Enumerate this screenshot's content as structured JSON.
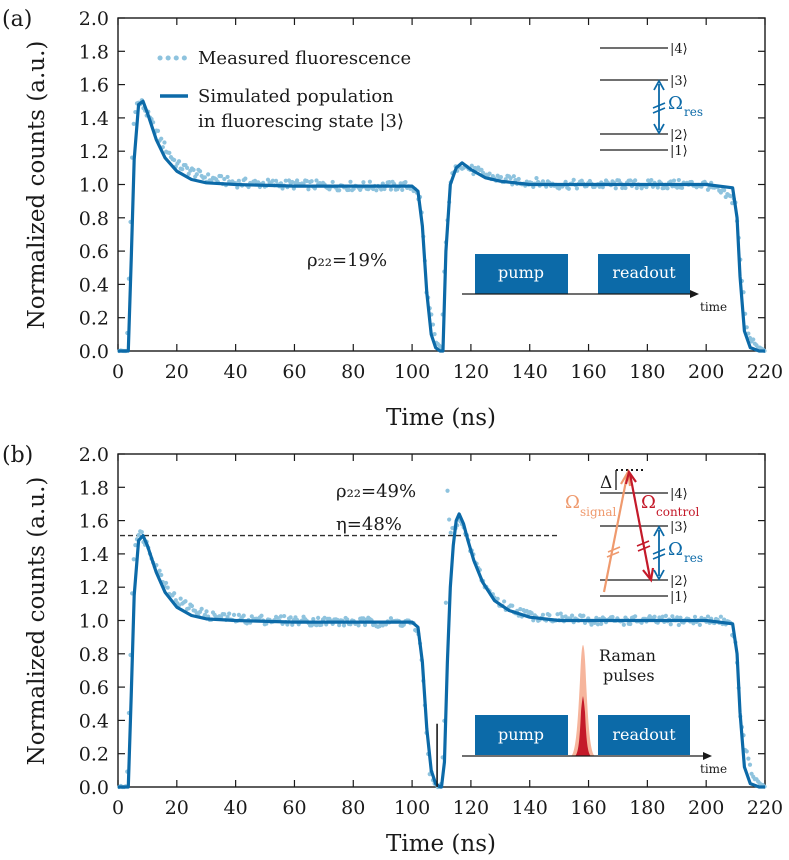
{
  "colors": {
    "measured": "#8ec3de",
    "simulated": "#0c6aa8",
    "box": "#0c6aa8",
    "signal": "#ef9a6e",
    "control": "#c41a2a",
    "axis": "#1a1a1a"
  },
  "chart_data": [
    {
      "panel_label": "(a)",
      "type": "scatter",
      "xlabel": "Time (ns)",
      "ylabel": "Normalized counts (a.u.)",
      "xlim": [
        0,
        220
      ],
      "ylim": [
        0,
        2.0
      ],
      "x_ticks": [
        "0",
        "20",
        "40",
        "60",
        "80",
        "100",
        "120",
        "140",
        "160",
        "180",
        "200",
        "220"
      ],
      "y_ticks": [
        "0.0",
        "0.2",
        "0.4",
        "0.6",
        "0.8",
        "1.0",
        "1.2",
        "1.4",
        "1.6",
        "1.8",
        "2.0"
      ],
      "legend": {
        "placement": "top-left",
        "entries": [
          "Measured fluorescence",
          "Simulated population",
          "in fluorescing state |3⟩"
        ]
      },
      "series": [
        {
          "name": "Measured fluorescence",
          "style": "dotted",
          "x": [
            0,
            3,
            4,
            5,
            6,
            8,
            10,
            15,
            20,
            30,
            40,
            60,
            80,
            100,
            103,
            105,
            108,
            110,
            111,
            113,
            116,
            120,
            130,
            150,
            180,
            200,
            210,
            212,
            214,
            217,
            220
          ],
          "y": [
            0,
            0,
            0.6,
            1.3,
            1.48,
            1.49,
            1.42,
            1.25,
            1.12,
            1.04,
            1.01,
            1.0,
            0.99,
            0.99,
            0.9,
            0.35,
            0.05,
            0.02,
            0.5,
            1.02,
            1.13,
            1.09,
            1.03,
            1.0,
            1.0,
            1.0,
            0.9,
            0.45,
            0.12,
            0.03,
            0.0
          ]
        },
        {
          "name": "Simulated population in fluorescing state |3⟩",
          "style": "solid",
          "x": [
            0,
            3.5,
            4.5,
            5.5,
            7,
            8.5,
            10,
            13,
            16,
            20,
            25,
            30,
            40,
            60,
            80,
            100,
            102,
            103.5,
            105,
            106.5,
            108,
            109.5,
            110.5,
            111.5,
            113,
            115,
            117,
            120,
            125,
            130,
            140,
            160,
            180,
            200,
            209,
            210.5,
            211.5,
            213,
            215,
            218,
            220
          ],
          "y": [
            0,
            0,
            0.55,
            1.15,
            1.48,
            1.5,
            1.43,
            1.27,
            1.16,
            1.08,
            1.03,
            1.01,
            1.0,
            0.99,
            0.99,
            0.99,
            0.96,
            0.75,
            0.35,
            0.1,
            0.02,
            0,
            0,
            0.6,
            1.0,
            1.1,
            1.13,
            1.09,
            1.04,
            1.02,
            1.0,
            1.0,
            1.0,
            1.0,
            0.98,
            0.8,
            0.45,
            0.12,
            0.02,
            0,
            0
          ]
        }
      ],
      "annotations": {
        "rho": "ρ₂₂=19%",
        "levels": [
          "|4⟩",
          "|3⟩",
          "|2⟩",
          "|1⟩"
        ],
        "omega_res": "Ω",
        "omega_res_sub": "res",
        "pulse_pump": "pump",
        "pulse_readout": "readout",
        "time_arrow": "time"
      }
    },
    {
      "panel_label": "(b)",
      "type": "scatter",
      "xlabel": "Time (ns)",
      "ylabel": "Normalized counts (a.u.)",
      "xlim": [
        0,
        220
      ],
      "ylim": [
        0,
        2.0
      ],
      "x_ticks": [
        "0",
        "20",
        "40",
        "60",
        "80",
        "100",
        "120",
        "140",
        "160",
        "180",
        "200",
        "220"
      ],
      "y_ticks": [
        "0.0",
        "0.2",
        "0.4",
        "0.6",
        "0.8",
        "1.0",
        "1.2",
        "1.4",
        "1.6",
        "1.8",
        "2.0"
      ],
      "reference_line_y": 1.51,
      "series": [
        {
          "name": "Measured fluorescence",
          "style": "dotted",
          "x": [
            0,
            3,
            4,
            5,
            6,
            8,
            10,
            15,
            20,
            30,
            40,
            60,
            80,
            100,
            103,
            105,
            106,
            107.5,
            109,
            110,
            111,
            112,
            113,
            114,
            116,
            118,
            120,
            125,
            130,
            140,
            160,
            180,
            200,
            208,
            210,
            212,
            215,
            218,
            220
          ],
          "y": [
            0,
            0,
            0.65,
            1.3,
            1.5,
            1.52,
            1.45,
            1.25,
            1.12,
            1.03,
            1.01,
            1.0,
            0.99,
            0.99,
            0.85,
            0.3,
            0.1,
            0.02,
            0.0,
            0.02,
            0.4,
            1.8,
            1.5,
            1.55,
            1.62,
            1.52,
            1.42,
            1.2,
            1.1,
            1.03,
            1.0,
            1.0,
            1.0,
            1.0,
            0.85,
            0.35,
            0.1,
            0.02,
            0.0
          ]
        },
        {
          "name": "Simulated population",
          "style": "solid",
          "x": [
            0,
            3.5,
            4.5,
            5.5,
            7,
            8.5,
            10,
            13,
            16,
            20,
            25,
            30,
            40,
            60,
            80,
            100,
            102,
            103.5,
            105,
            106.5,
            108,
            109.5,
            110,
            111,
            112,
            113,
            114,
            115,
            116,
            117.5,
            119,
            121,
            124,
            128,
            133,
            140,
            150,
            160,
            180,
            200,
            209,
            210.5,
            211.5,
            213,
            215,
            218,
            220
          ],
          "y": [
            0,
            0,
            0.55,
            1.15,
            1.48,
            1.51,
            1.45,
            1.29,
            1.17,
            1.08,
            1.03,
            1.01,
            1.0,
            0.99,
            0.99,
            0.99,
            0.96,
            0.75,
            0.35,
            0.1,
            0.02,
            0,
            0,
            0.15,
            0.75,
            1.2,
            1.45,
            1.6,
            1.64,
            1.58,
            1.48,
            1.36,
            1.23,
            1.12,
            1.06,
            1.02,
            1.0,
            1.0,
            1.0,
            1.0,
            0.98,
            0.8,
            0.45,
            0.12,
            0.02,
            0,
            0
          ]
        }
      ],
      "annotations": {
        "rho": "ρ₂₂=49%",
        "eta": "η=48%",
        "delta": "Δ",
        "levels": [
          "|4⟩",
          "|3⟩",
          "|2⟩",
          "|1⟩"
        ],
        "omega_res": "Ω",
        "omega_res_sub": "res",
        "omega_signal": "Ω",
        "omega_signal_sub": "signal",
        "omega_control": "Ω",
        "omega_control_sub": "control",
        "raman_line1": "Raman",
        "raman_line2": "pulses",
        "pulse_pump": "pump",
        "pulse_readout": "readout",
        "time_arrow": "time"
      }
    }
  ]
}
